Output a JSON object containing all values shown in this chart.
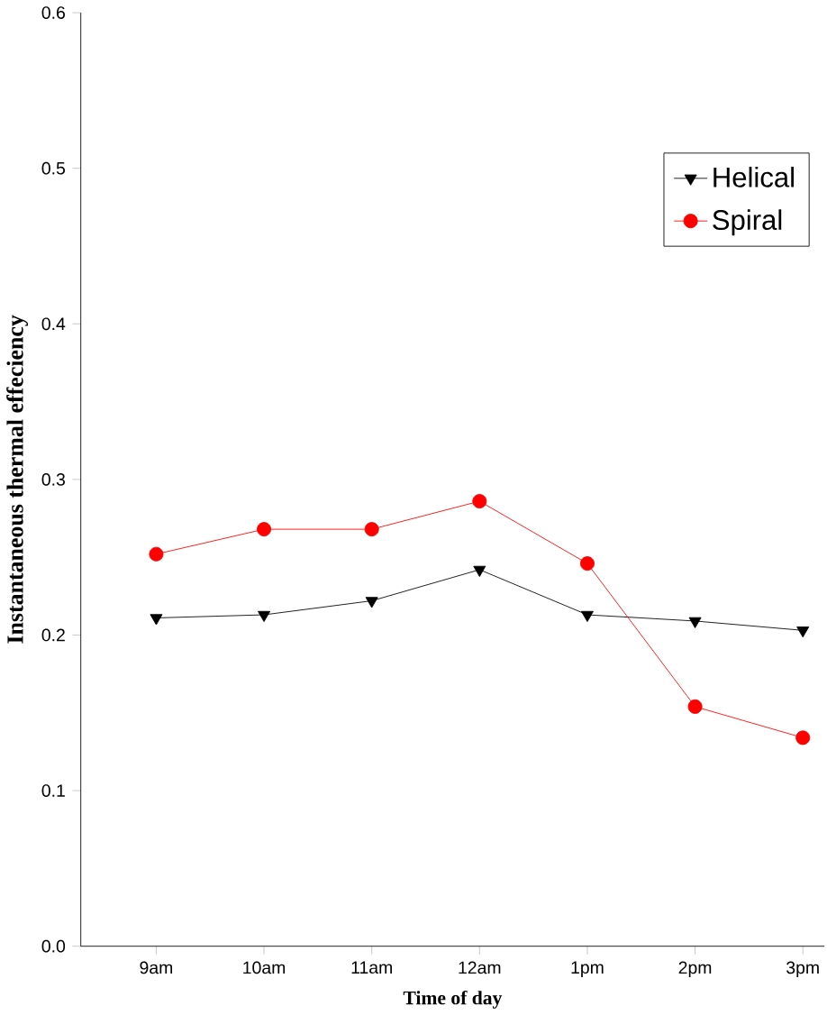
{
  "chart_data": {
    "type": "line",
    "xlabel": "Time of day",
    "ylabel": "Instantaneous thermal effeciency",
    "categories": [
      "9am",
      "10am",
      "11am",
      "12am",
      "1pm",
      "2pm",
      "3pm"
    ],
    "series": [
      {
        "name": "Helical",
        "color": "#000000",
        "marker": "triangle",
        "values": [
          0.211,
          0.213,
          0.222,
          0.242,
          0.213,
          0.209,
          0.203
        ]
      },
      {
        "name": "Spiral",
        "color": "#ff0000",
        "marker": "circle",
        "values": [
          0.252,
          0.268,
          0.268,
          0.286,
          0.246,
          0.154,
          0.134
        ]
      }
    ],
    "ylim": [
      0,
      0.6
    ],
    "yticks": [
      {
        "value": 0,
        "label": "0.0"
      },
      {
        "value": 0.1,
        "label": "0.1"
      },
      {
        "value": 0.2,
        "label": "0.2"
      },
      {
        "value": 0.3,
        "label": "0.3"
      },
      {
        "value": 0.4,
        "label": "0.4"
      },
      {
        "value": 0.5,
        "label": "0.5"
      },
      {
        "value": 0.6,
        "label": "0.6"
      }
    ],
    "legend": "top right",
    "grid": false,
    "line_style": "solid"
  }
}
